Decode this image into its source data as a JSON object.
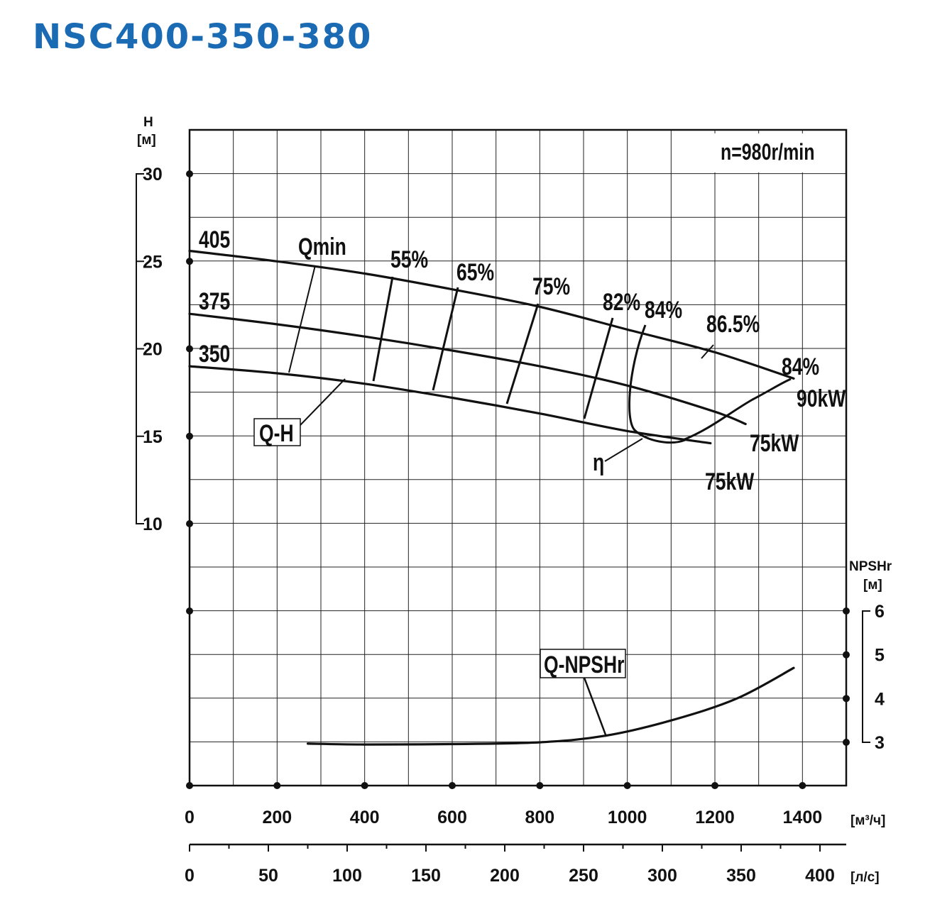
{
  "title": "NSC400-350-380",
  "chart_data": {
    "type": "line",
    "title": "NSC400-350-380",
    "speed_label": "n=980r/min",
    "y_left": {
      "label": "H",
      "unit": "[м]",
      "ticks": [
        "30",
        "25",
        "20",
        "15",
        "10"
      ],
      "range": [
        10,
        30
      ]
    },
    "y_right": {
      "label": "NPSHr",
      "unit": "[м]",
      "ticks": [
        "6",
        "5",
        "4",
        "3"
      ],
      "range": [
        3,
        6
      ]
    },
    "x_primary": {
      "unit": "[м³/ч]",
      "ticks": [
        "0",
        "200",
        "400",
        "600",
        "800",
        "1000",
        "1200",
        "1400"
      ],
      "range": [
        0,
        1500
      ]
    },
    "x_secondary": {
      "unit": "[л/с]",
      "ticks": [
        "0",
        "50",
        "100",
        "150",
        "200",
        "250",
        "300",
        "350",
        "400"
      ]
    },
    "grid": true,
    "series": [
      {
        "name": "405",
        "axis": "H",
        "x": [
          0,
          200,
          400,
          600,
          800,
          1000,
          1200,
          1380
        ],
        "y": [
          25.6,
          25.0,
          24.3,
          23.4,
          22.4,
          21.1,
          19.8,
          18.3
        ]
      },
      {
        "name": "375",
        "axis": "H",
        "x": [
          0,
          200,
          400,
          600,
          800,
          1000,
          1200,
          1270
        ],
        "y": [
          22.0,
          21.4,
          20.7,
          19.9,
          19.0,
          17.9,
          16.4,
          15.7
        ]
      },
      {
        "name": "350",
        "axis": "H",
        "x": [
          0,
          200,
          400,
          600,
          800,
          1000,
          1190
        ],
        "y": [
          19.0,
          18.6,
          18.0,
          17.2,
          16.3,
          15.3,
          14.6
        ]
      },
      {
        "name": "Q-NPSHr",
        "axis": "NPSHr",
        "x": [
          270,
          400,
          600,
          800,
          950,
          1100,
          1250,
          1380
        ],
        "y": [
          2.97,
          2.95,
          2.96,
          3.0,
          3.15,
          3.5,
          4.0,
          4.7
        ]
      }
    ],
    "efficiency_labels": [
      "55%",
      "65%",
      "75%",
      "82%",
      "84%",
      "86.5%",
      "84%"
    ],
    "power_labels": [
      "90kW",
      "75kW",
      "75kW"
    ],
    "annotations": [
      "Qmin",
      "Q-H",
      "η",
      "Q-NPSHr"
    ]
  }
}
